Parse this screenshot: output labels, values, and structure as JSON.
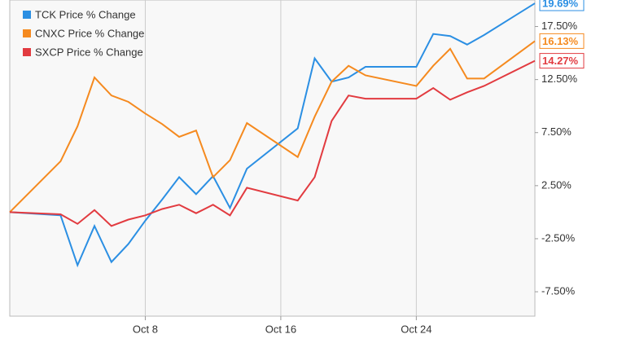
{
  "chart_data": {
    "type": "line",
    "x": [
      0,
      3,
      4,
      5,
      6,
      7,
      8,
      9,
      10,
      11,
      12,
      13,
      14,
      17,
      18,
      19,
      20,
      21,
      24,
      25,
      26,
      27,
      28,
      31
    ],
    "xlim": [
      0,
      31
    ],
    "xticks": [
      {
        "value": 8,
        "label": "Oct 8"
      },
      {
        "value": 16,
        "label": "Oct 16"
      },
      {
        "value": 24,
        "label": "Oct 24"
      }
    ],
    "ylim": [
      -9.8,
      20
    ],
    "yticks": [
      {
        "value": -7.5,
        "label": "-7.50%"
      },
      {
        "value": -2.5,
        "label": "-2.50%"
      },
      {
        "value": 2.5,
        "label": "2.50%"
      },
      {
        "value": 7.5,
        "label": "7.50%"
      },
      {
        "value": 12.5,
        "label": "12.50%"
      },
      {
        "value": 17.5,
        "label": "17.50%"
      }
    ],
    "grid": "x",
    "legend": "top-left",
    "series": [
      {
        "name": "TCK Price % Change",
        "color": "#2b8fe3",
        "values": [
          0,
          -0.3,
          -5.0,
          -1.3,
          -4.7,
          -3.0,
          -0.8,
          1.2,
          3.3,
          1.7,
          3.4,
          0.4,
          4.1,
          7.9,
          14.5,
          12.3,
          12.7,
          13.7,
          13.7,
          16.8,
          16.6,
          15.8,
          16.7,
          19.69
        ],
        "value_labels": [
          null,
          null,
          null,
          null,
          null,
          null,
          null,
          null,
          null,
          null,
          null,
          null,
          null,
          null,
          null,
          null,
          null,
          null,
          null,
          null,
          null,
          null,
          null,
          "19.69%"
        ]
      },
      {
        "name": "CNXC Price % Change",
        "color": "#f58a1f",
        "values": [
          0,
          4.8,
          8.1,
          12.7,
          11.0,
          10.4,
          9.3,
          8.3,
          7.1,
          7.7,
          3.3,
          4.9,
          8.4,
          5.2,
          9.0,
          12.3,
          13.8,
          12.9,
          11.9,
          13.8,
          15.4,
          12.6,
          12.6,
          16.13
        ],
        "value_labels": [
          null,
          null,
          null,
          null,
          null,
          null,
          null,
          null,
          null,
          null,
          null,
          null,
          null,
          null,
          null,
          null,
          null,
          null,
          null,
          null,
          null,
          null,
          null,
          "16.13%"
        ]
      },
      {
        "name": "SXCP Price % Change",
        "color": "#e23b40",
        "values": [
          0,
          -0.2,
          -1.1,
          0.2,
          -1.3,
          -0.7,
          -0.3,
          0.3,
          0.7,
          -0.1,
          0.7,
          -0.3,
          2.3,
          1.1,
          3.3,
          8.6,
          11.0,
          10.7,
          10.7,
          11.7,
          10.6,
          11.3,
          11.9,
          14.27
        ],
        "value_labels": [
          null,
          null,
          null,
          null,
          null,
          null,
          null,
          null,
          null,
          null,
          null,
          null,
          null,
          null,
          null,
          null,
          null,
          null,
          null,
          null,
          null,
          null,
          null,
          "14.27%"
        ]
      }
    ]
  }
}
